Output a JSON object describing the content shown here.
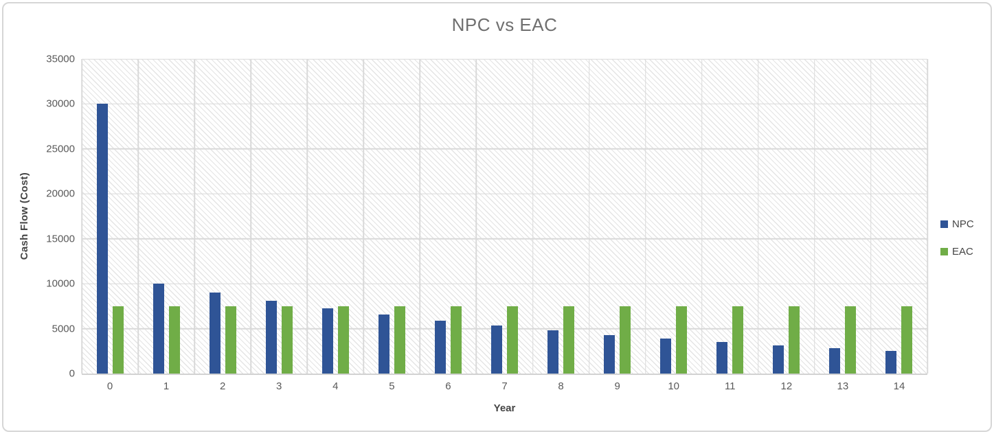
{
  "chart_data": {
    "type": "bar",
    "title": "NPC vs EAC",
    "xlabel": "Year",
    "ylabel": "Cash Flow  (Cost)",
    "categories": [
      "0",
      "1",
      "2",
      "3",
      "4",
      "5",
      "6",
      "7",
      "8",
      "9",
      "10",
      "11",
      "12",
      "13",
      "14"
    ],
    "series": [
      {
        "name": "NPC",
        "color": "#2F5496",
        "values": [
          30000,
          10000,
          9000,
          8100,
          7290,
          6561,
          5905,
          5314,
          4783,
          4305,
          3874,
          3487,
          3138,
          2824,
          2542
        ]
      },
      {
        "name": "EAC",
        "color": "#70AD47",
        "values": [
          7500,
          7500,
          7500,
          7500,
          7500,
          7500,
          7500,
          7500,
          7500,
          7500,
          7500,
          7500,
          7500,
          7500,
          7500
        ]
      }
    ],
    "ylim": [
      0,
      35000
    ],
    "ytick_step": 5000,
    "grid": true,
    "legend_position": "right",
    "plot_background": "diagonal-hatch-pattern"
  },
  "colors": {
    "npc": "#2F5496",
    "eac": "#70AD47",
    "gridline": "#D9D9D9",
    "tick_text": "#595959",
    "title_text": "#6F6F6F",
    "axis_title_text": "#454545",
    "card_border": "#D6D6D6"
  }
}
